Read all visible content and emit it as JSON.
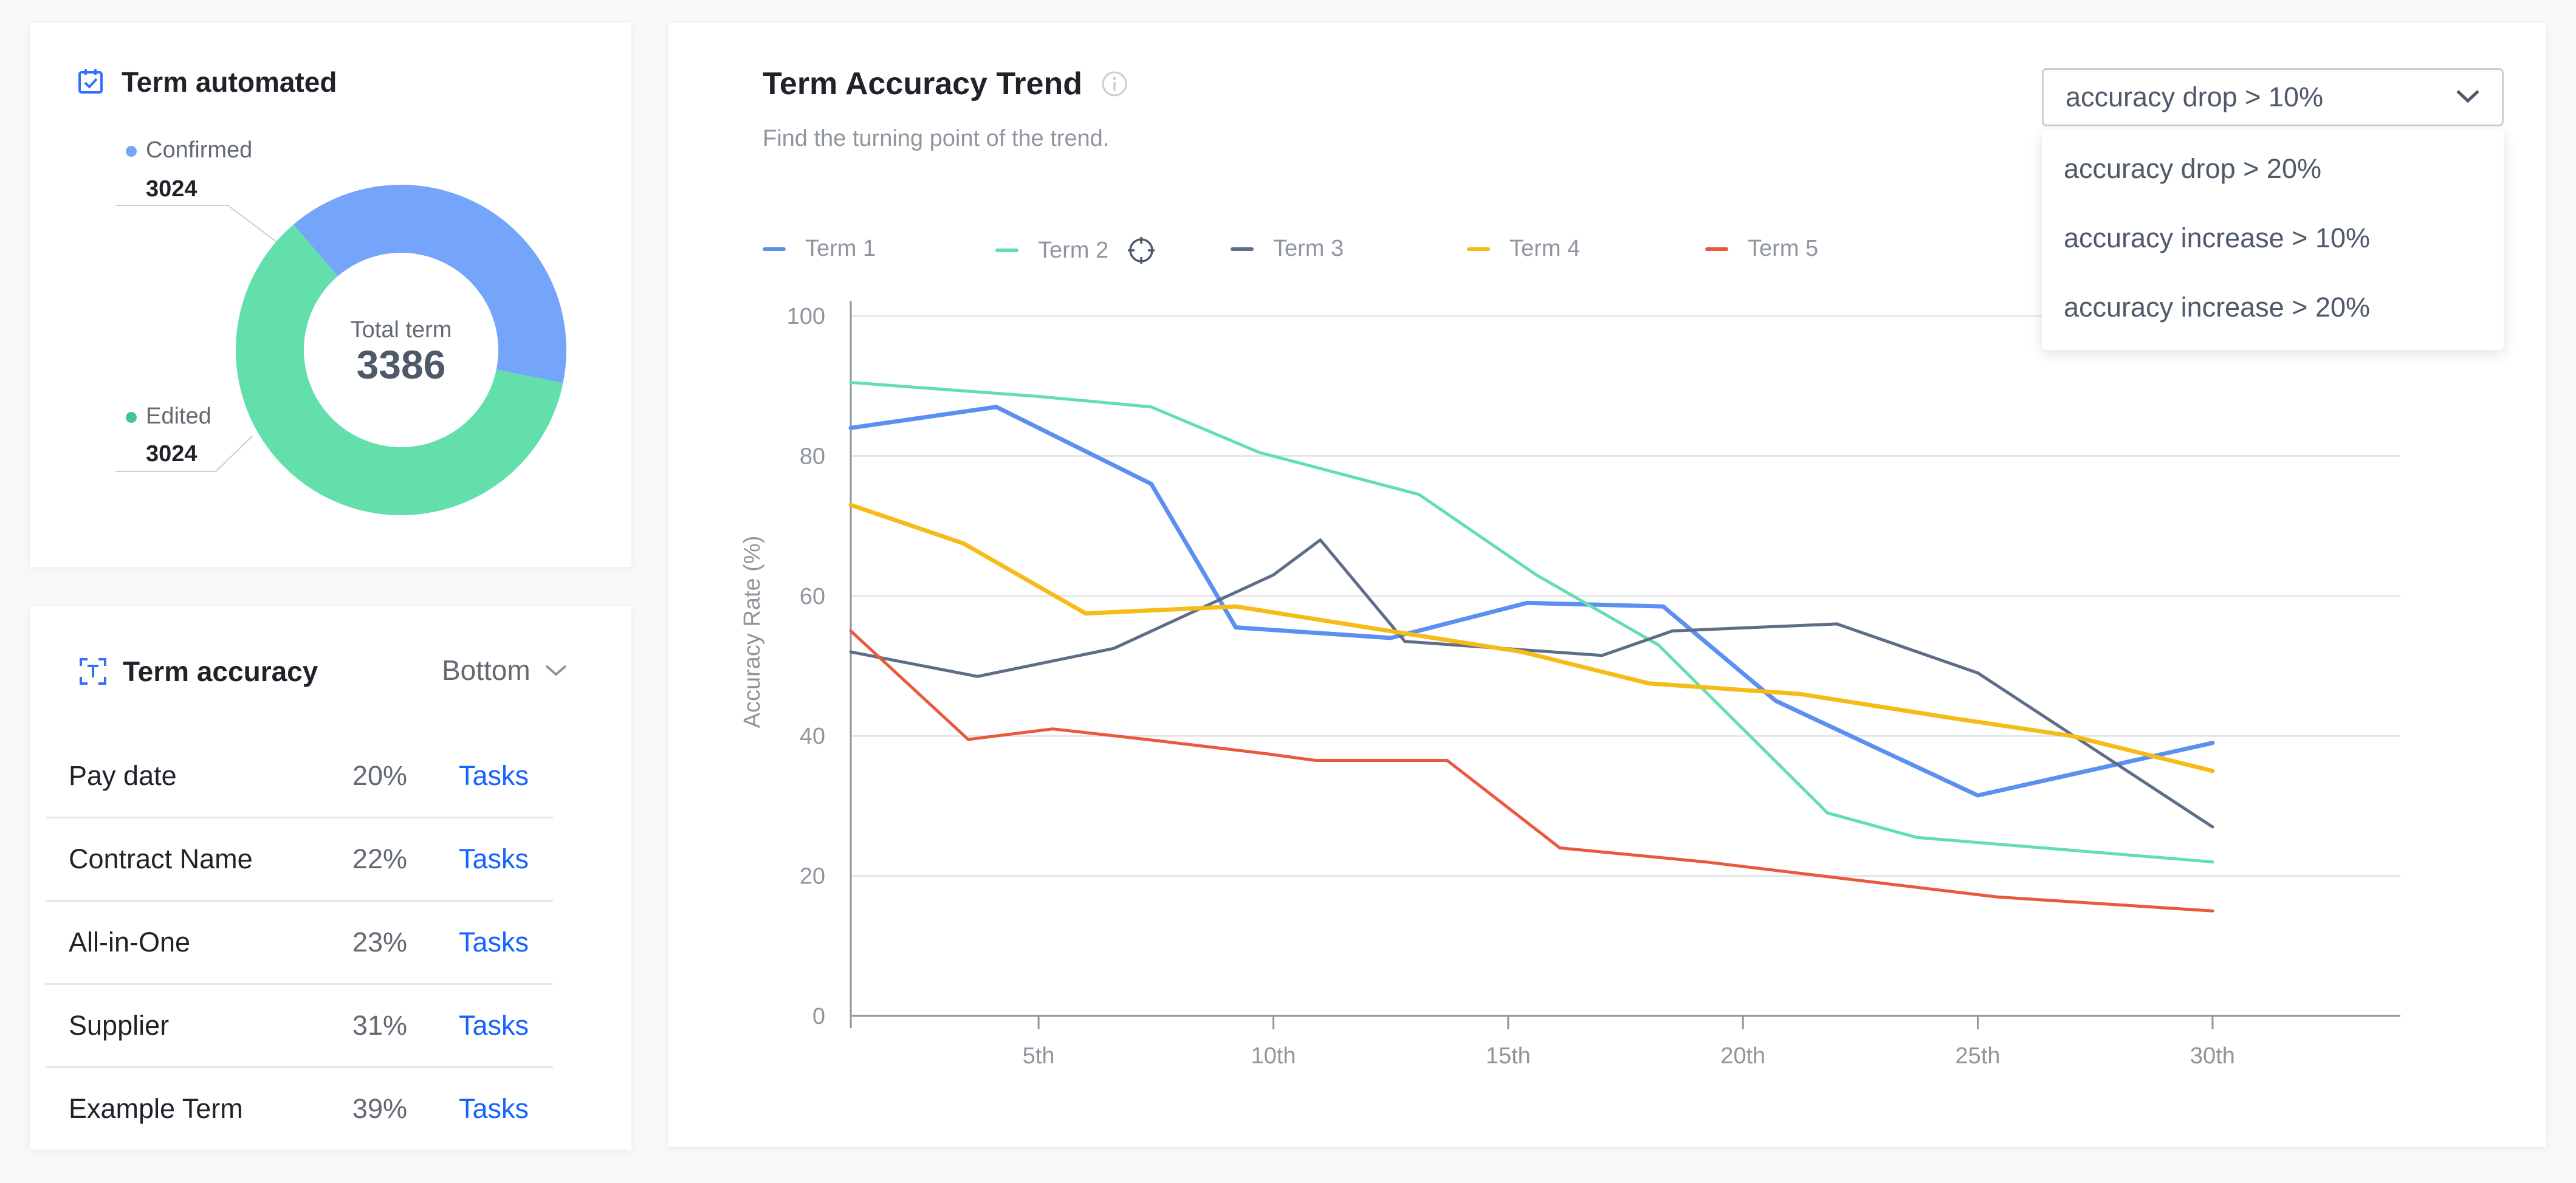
{
  "automated": {
    "title": "Term automated",
    "icon": "checkbox-calendar-icon",
    "center_label": "Total term",
    "center_value": "3386",
    "legend": [
      {
        "label": "Confirmed",
        "value": "3024",
        "color": "#75a5fa"
      },
      {
        "label": "Edited",
        "value": "3024",
        "color": "#3fc6a0"
      }
    ],
    "donut": {
      "confirmed_fraction": 0.395,
      "confirmed_color": "#75a5fa",
      "edited_color": "#62dfab"
    }
  },
  "accuracy": {
    "title": "Term accuracy",
    "icon": "text-scan-icon",
    "sort_label": "Bottom",
    "rows": [
      {
        "name": "Pay date",
        "pct": "20%",
        "link": "Tasks"
      },
      {
        "name": "Contract Name",
        "pct": "22%",
        "link": "Tasks"
      },
      {
        "name": "All-in-One",
        "pct": "23%",
        "link": "Tasks"
      },
      {
        "name": "Supplier",
        "pct": "31%",
        "link": "Tasks"
      },
      {
        "name": "Example Term",
        "pct": "39%",
        "link": "Tasks"
      }
    ]
  },
  "trend": {
    "title": "Term Accuracy Trend",
    "subtitle": "Find the turning point of the trend.",
    "select": {
      "value": "accuracy drop > 10%",
      "options": [
        "accuracy drop > 20%",
        "accuracy increase > 10%",
        "accuracy increase > 20%"
      ]
    }
  },
  "chart_data": {
    "type": "line",
    "title": "Term Accuracy Trend",
    "xlabel": "",
    "ylabel": "Accuracy Rate (%)",
    "xlim": [
      1,
      34
    ],
    "ylim": [
      0,
      100
    ],
    "x_ticks": [
      5,
      10,
      15,
      20,
      25,
      30
    ],
    "x_tick_labels": [
      "5th",
      "10th",
      "15th",
      "20th",
      "25th",
      "30th"
    ],
    "y_ticks": [
      0,
      20,
      40,
      60,
      80,
      100
    ],
    "grid": "horizontal",
    "legend_position": "top",
    "series": [
      {
        "name": "Term 1",
        "color": "#5b8ff0",
        "width": 7,
        "x": [
          1,
          4.1,
          7.4,
          9.2,
          12.5,
          15.4,
          18.3,
          20.7,
          25,
          30
        ],
        "y": [
          84,
          87,
          76,
          55.5,
          54,
          59,
          58.5,
          45,
          31.5,
          39
        ]
      },
      {
        "name": "Term 2",
        "color": "#62dfab",
        "width": 5,
        "x": [
          1,
          5,
          7.4,
          9.7,
          13.1,
          15.6,
          18.2,
          21.8,
          23.7,
          30
        ],
        "y": [
          90.5,
          88.5,
          87,
          80.5,
          74.5,
          63,
          53,
          29,
          25.5,
          22
        ]
      },
      {
        "name": "Term 3",
        "color": "#5d6d88",
        "width": 5,
        "x": [
          1,
          3.7,
          6.6,
          10,
          11,
          12.8,
          17,
          18.5,
          22,
          25,
          30
        ],
        "y": [
          52,
          48.5,
          52.5,
          63,
          68,
          53.5,
          51.5,
          55,
          56,
          49,
          27
        ]
      },
      {
        "name": "Term 4",
        "color": "#f5bc19",
        "width": 7,
        "x": [
          1,
          3.4,
          6,
          9.2,
          12,
          15.3,
          18,
          21.2,
          24.5,
          27,
          30
        ],
        "y": [
          73,
          67.5,
          57.5,
          58.5,
          55.5,
          52,
          47.5,
          46,
          42.5,
          40,
          35
        ]
      },
      {
        "name": "Term 5",
        "color": "#e8593d",
        "width": 5,
        "x": [
          1,
          3.5,
          5.3,
          7.3,
          9.8,
          10.9,
          13.7,
          16.1,
          19.2,
          22.3,
          25.4,
          30
        ],
        "y": [
          55,
          39.5,
          41,
          39.5,
          37.5,
          36.5,
          36.5,
          24,
          22,
          19.5,
          17,
          15
        ]
      }
    ]
  }
}
